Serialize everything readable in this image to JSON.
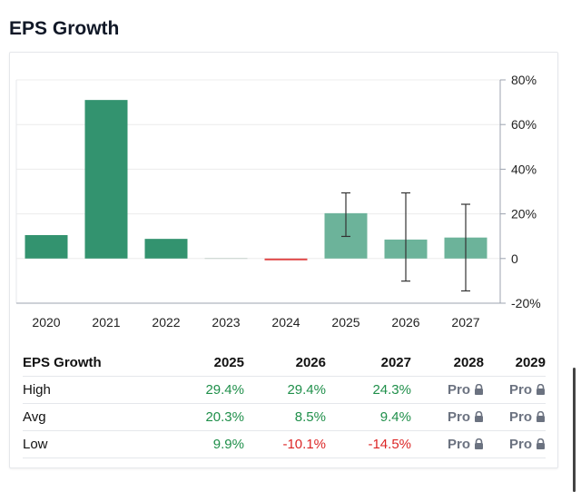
{
  "title": "EPS Growth",
  "colors": {
    "actual_bar": "#33936f",
    "estimate_bar": "#6cb39a",
    "negative_bar": "#e04545",
    "positive_text": "#1f8f4a",
    "negative_text": "#dc2626"
  },
  "chart_data": {
    "type": "bar",
    "categories": [
      "2020",
      "2021",
      "2022",
      "2023",
      "2024",
      "2025",
      "2026",
      "2027"
    ],
    "values": [
      10.5,
      71.0,
      8.8,
      0.3,
      -0.8,
      20.3,
      8.5,
      9.4
    ],
    "estimate_flags": [
      false,
      false,
      false,
      false,
      false,
      true,
      true,
      true
    ],
    "error_ranges": [
      null,
      null,
      null,
      null,
      null,
      [
        9.9,
        29.4
      ],
      [
        -10.1,
        29.4
      ],
      [
        -14.5,
        24.3
      ]
    ],
    "y_ticks": [
      "80%",
      "60%",
      "40%",
      "20%",
      "0",
      "-20%"
    ],
    "y_tick_values": [
      80,
      60,
      40,
      20,
      0,
      -20
    ],
    "ylim": [
      -20,
      80
    ],
    "y_axis_position": "right",
    "grid": true,
    "title": "",
    "xlabel": "",
    "ylabel": ""
  },
  "table": {
    "header": [
      "EPS Growth",
      "2025",
      "2026",
      "2027",
      "2028",
      "2029"
    ],
    "rows": [
      {
        "label": "High",
        "cells": [
          {
            "text": "29.4%",
            "kind": "pos"
          },
          {
            "text": "29.4%",
            "kind": "pos"
          },
          {
            "text": "24.3%",
            "kind": "pos"
          },
          {
            "text": "Pro",
            "kind": "pro"
          },
          {
            "text": "Pro",
            "kind": "pro"
          }
        ]
      },
      {
        "label": "Avg",
        "cells": [
          {
            "text": "20.3%",
            "kind": "pos"
          },
          {
            "text": "8.5%",
            "kind": "pos"
          },
          {
            "text": "9.4%",
            "kind": "pos"
          },
          {
            "text": "Pro",
            "kind": "pro"
          },
          {
            "text": "Pro",
            "kind": "pro"
          }
        ]
      },
      {
        "label": "Low",
        "cells": [
          {
            "text": "9.9%",
            "kind": "pos"
          },
          {
            "text": "-10.1%",
            "kind": "neg"
          },
          {
            "text": "-14.5%",
            "kind": "neg"
          },
          {
            "text": "Pro",
            "kind": "pro"
          },
          {
            "text": "Pro",
            "kind": "pro"
          }
        ]
      }
    ]
  }
}
